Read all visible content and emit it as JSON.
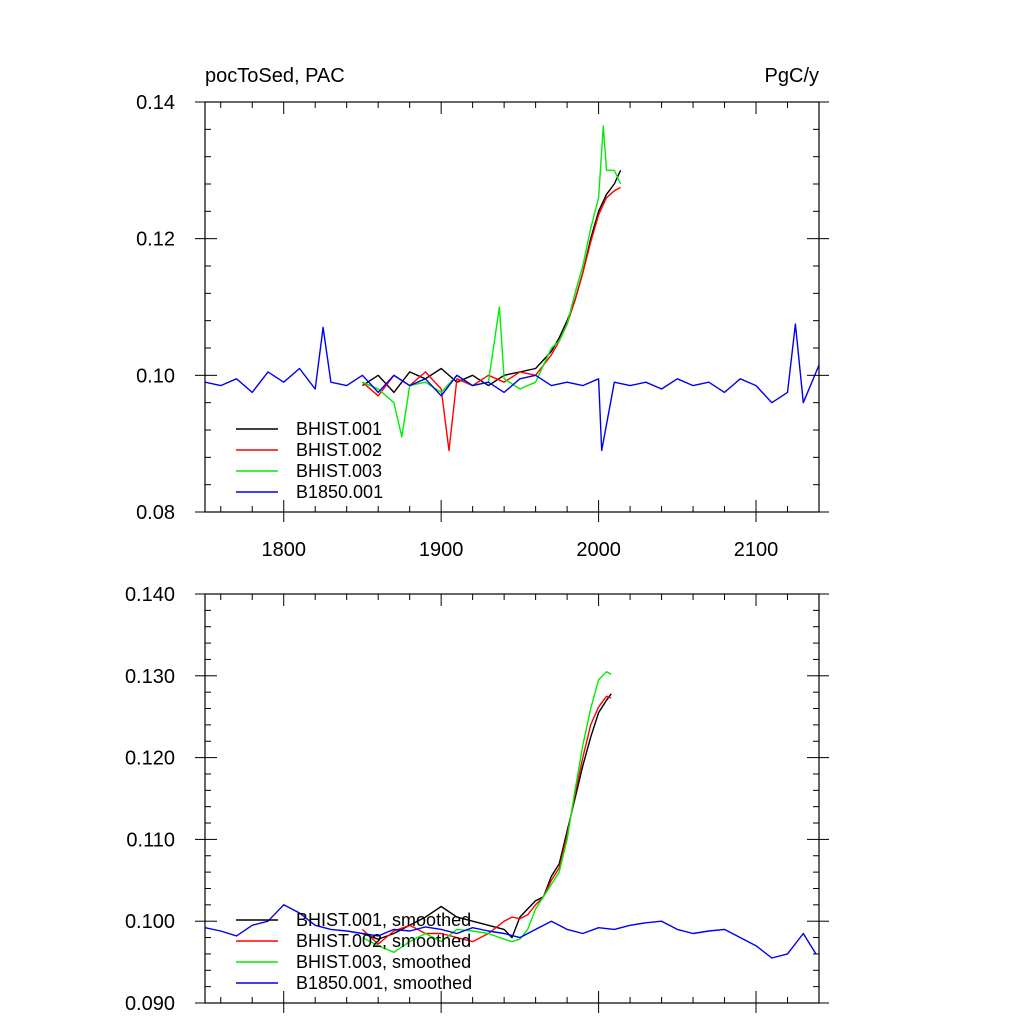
{
  "figure": {
    "title_left": "pocToSed, PAC",
    "title_right": "PgC/y"
  },
  "chart_data": [
    {
      "type": "line",
      "title": "pocToSed, PAC",
      "units": "PgC/y",
      "xlim": [
        1750,
        2140
      ],
      "ylim": [
        0.08,
        0.14
      ],
      "xticks": [
        1800,
        1900,
        2000,
        2100
      ],
      "xtick_labels": [
        "1800",
        "1900",
        "2000",
        "2100"
      ],
      "yticks": [
        0.08,
        0.1,
        0.12,
        0.14
      ],
      "ytick_labels": [
        "0.08",
        "0.10",
        "0.12",
        "0.14"
      ],
      "legend_position": "lower-left",
      "series": [
        {
          "name": "BHIST.001",
          "color": "#000000",
          "x": [
            1850,
            1860,
            1870,
            1880,
            1890,
            1900,
            1910,
            1920,
            1930,
            1940,
            1950,
            1960,
            1970,
            1975,
            1980,
            1985,
            1990,
            1995,
            2000,
            2005,
            2010,
            2014
          ],
          "y": [
            0.0985,
            0.1,
            0.0975,
            0.1005,
            0.0995,
            0.101,
            0.099,
            0.1,
            0.0985,
            0.1,
            0.1005,
            0.101,
            0.1035,
            0.1055,
            0.108,
            0.111,
            0.115,
            0.12,
            0.124,
            0.1265,
            0.128,
            0.13
          ]
        },
        {
          "name": "BHIST.002",
          "color": "#ff0000",
          "x": [
            1850,
            1860,
            1870,
            1880,
            1890,
            1900,
            1905,
            1910,
            1920,
            1930,
            1940,
            1950,
            1960,
            1970,
            1975,
            1980,
            1985,
            1990,
            1995,
            2000,
            2005,
            2010,
            2014
          ],
          "y": [
            0.099,
            0.097,
            0.1,
            0.0985,
            0.1005,
            0.098,
            0.089,
            0.0995,
            0.0985,
            0.1,
            0.099,
            0.1005,
            0.1,
            0.103,
            0.105,
            0.1075,
            0.111,
            0.115,
            0.1195,
            0.1235,
            0.126,
            0.127,
            0.1275
          ]
        },
        {
          "name": "BHIST.003",
          "color": "#00ee00",
          "x": [
            1850,
            1860,
            1870,
            1875,
            1880,
            1890,
            1900,
            1910,
            1920,
            1930,
            1937,
            1940,
            1950,
            1960,
            1970,
            1975,
            1980,
            1985,
            1990,
            1995,
            2000,
            2003,
            2005,
            2010,
            2014
          ],
          "y": [
            0.099,
            0.098,
            0.096,
            0.091,
            0.0985,
            0.099,
            0.0975,
            0.1,
            0.0985,
            0.099,
            0.11,
            0.0995,
            0.098,
            0.099,
            0.104,
            0.105,
            0.1075,
            0.112,
            0.116,
            0.1215,
            0.126,
            0.1365,
            0.13,
            0.13,
            0.128
          ]
        },
        {
          "name": "B1850.001",
          "color": "#0000ee",
          "x": [
            1750,
            1760,
            1770,
            1780,
            1790,
            1800,
            1810,
            1820,
            1825,
            1830,
            1840,
            1850,
            1860,
            1870,
            1880,
            1890,
            1900,
            1910,
            1920,
            1930,
            1940,
            1950,
            1960,
            1970,
            1980,
            1990,
            2000,
            2002,
            2010,
            2020,
            2030,
            2040,
            2050,
            2060,
            2070,
            2080,
            2090,
            2100,
            2110,
            2120,
            2125,
            2130,
            2140
          ],
          "y": [
            0.099,
            0.0985,
            0.0995,
            0.0975,
            0.1005,
            0.099,
            0.101,
            0.098,
            0.107,
            0.099,
            0.0985,
            0.1,
            0.0975,
            0.1,
            0.0985,
            0.0995,
            0.097,
            0.1,
            0.0985,
            0.099,
            0.0975,
            0.0995,
            0.1,
            0.0985,
            0.099,
            0.0985,
            0.0995,
            0.089,
            0.099,
            0.0985,
            0.099,
            0.098,
            0.0995,
            0.0985,
            0.099,
            0.0975,
            0.0995,
            0.0985,
            0.096,
            0.0975,
            0.1075,
            0.096,
            0.1015
          ]
        }
      ]
    },
    {
      "type": "line",
      "xlim": [
        1750,
        2140
      ],
      "ylim": [
        0.09,
        0.14
      ],
      "xticks": [
        1800,
        1900,
        2000,
        2100
      ],
      "yticks": [
        0.09,
        0.1,
        0.11,
        0.12,
        0.13,
        0.14
      ],
      "ytick_labels": [
        "0.090",
        "0.100",
        "0.110",
        "0.120",
        "0.130",
        "0.140"
      ],
      "legend_position": "lower-left",
      "series": [
        {
          "name": "BHIST.001, smoothed",
          "color": "#000000",
          "x": [
            1850,
            1860,
            1870,
            1880,
            1890,
            1900,
            1910,
            1920,
            1930,
            1940,
            1945,
            1950,
            1955,
            1960,
            1965,
            1970,
            1975,
            1980,
            1985,
            1990,
            1995,
            2000,
            2005,
            2008
          ],
          "y": [
            0.0985,
            0.0978,
            0.0985,
            0.0995,
            0.1005,
            0.1018,
            0.1005,
            0.1,
            0.0995,
            0.099,
            0.098,
            0.1005,
            0.1015,
            0.1025,
            0.103,
            0.1055,
            0.107,
            0.111,
            0.115,
            0.119,
            0.1225,
            0.1255,
            0.127,
            0.1278
          ]
        },
        {
          "name": "BHIST.002, smoothed",
          "color": "#ff0000",
          "x": [
            1850,
            1860,
            1870,
            1880,
            1890,
            1900,
            1910,
            1920,
            1930,
            1940,
            1945,
            1950,
            1955,
            1960,
            1965,
            1970,
            1975,
            1980,
            1985,
            1990,
            1995,
            2000,
            2005,
            2008
          ],
          "y": [
            0.099,
            0.0972,
            0.0988,
            0.0995,
            0.0985,
            0.0985,
            0.098,
            0.0975,
            0.0985,
            0.1,
            0.1005,
            0.1003,
            0.1008,
            0.102,
            0.103,
            0.105,
            0.1065,
            0.1105,
            0.1155,
            0.12,
            0.124,
            0.1262,
            0.1275,
            0.1273
          ]
        },
        {
          "name": "BHIST.003, smoothed",
          "color": "#00ee00",
          "x": [
            1850,
            1860,
            1870,
            1880,
            1890,
            1900,
            1910,
            1920,
            1930,
            1940,
            1945,
            1950,
            1955,
            1960,
            1965,
            1970,
            1975,
            1980,
            1985,
            1990,
            1995,
            2000,
            2005,
            2008
          ],
          "y": [
            0.098,
            0.097,
            0.0962,
            0.0975,
            0.0985,
            0.0975,
            0.099,
            0.0988,
            0.0985,
            0.0978,
            0.0975,
            0.0978,
            0.099,
            0.1015,
            0.103,
            0.1045,
            0.106,
            0.11,
            0.116,
            0.1215,
            0.126,
            0.1295,
            0.1305,
            0.1302
          ]
        },
        {
          "name": "B1850.001, smoothed",
          "color": "#0000ee",
          "x": [
            1750,
            1760,
            1770,
            1780,
            1790,
            1800,
            1810,
            1820,
            1830,
            1840,
            1850,
            1860,
            1870,
            1880,
            1890,
            1900,
            1910,
            1920,
            1930,
            1940,
            1950,
            1960,
            1970,
            1980,
            1990,
            2000,
            2010,
            2020,
            2030,
            2040,
            2050,
            2060,
            2070,
            2080,
            2090,
            2100,
            2110,
            2120,
            2130,
            2138
          ],
          "y": [
            0.0992,
            0.0988,
            0.0982,
            0.0995,
            0.1,
            0.102,
            0.101,
            0.0995,
            0.099,
            0.0988,
            0.0985,
            0.0982,
            0.099,
            0.0988,
            0.0993,
            0.099,
            0.0985,
            0.0992,
            0.0988,
            0.0985,
            0.098,
            0.099,
            0.1,
            0.099,
            0.0985,
            0.0992,
            0.099,
            0.0995,
            0.0998,
            0.1,
            0.099,
            0.0985,
            0.0988,
            0.099,
            0.098,
            0.097,
            0.0955,
            0.096,
            0.0985,
            0.096
          ]
        }
      ]
    }
  ]
}
